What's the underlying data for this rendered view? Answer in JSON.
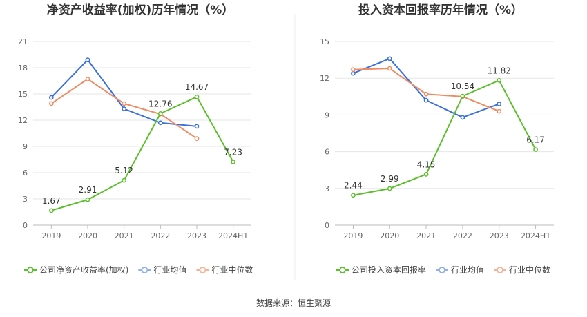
{
  "footer": {
    "source": "数据来源：恒生聚源"
  },
  "colors": {
    "company": "#5bbf2c",
    "avg": "#3a6fdc",
    "median": "#ef8a62",
    "legend_avg": "#8fb0ec",
    "legend_median": "#f5b49a",
    "grid": "#e6e6e6"
  },
  "chart_data": [
    {
      "type": "line",
      "title": "净资产收益率(加权)历年情况（%）",
      "categories": [
        "2019",
        "2020",
        "2021",
        "2022",
        "2023",
        "2024H1"
      ],
      "ylim": [
        0,
        21
      ],
      "yticks": [
        0,
        3,
        6,
        9,
        12,
        15,
        18,
        21
      ],
      "grid": true,
      "legend_position": "bottom",
      "series": [
        {
          "name": "公司净资产收益率(加权)",
          "values": [
            1.67,
            2.91,
            5.12,
            12.76,
            14.67,
            7.23
          ],
          "labels": [
            "1.67",
            "2.91",
            "5.12",
            "12.76",
            "14.67",
            "7.23"
          ]
        },
        {
          "name": "行业均值",
          "values": [
            14.6,
            18.9,
            13.3,
            11.7,
            11.3,
            null
          ]
        },
        {
          "name": "行业中位数",
          "values": [
            13.9,
            16.7,
            13.9,
            12.7,
            9.9,
            null
          ]
        }
      ]
    },
    {
      "type": "line",
      "title": "投入资本回报率历年情况（%）",
      "categories": [
        "2019",
        "2020",
        "2021",
        "2022",
        "2023",
        "2024H1"
      ],
      "ylim": [
        0,
        15
      ],
      "yticks": [
        0,
        3,
        6,
        9,
        12,
        15
      ],
      "grid": true,
      "legend_position": "bottom",
      "series": [
        {
          "name": "公司投入资本回报率",
          "values": [
            2.44,
            2.99,
            4.15,
            10.54,
            11.82,
            6.17
          ],
          "labels": [
            "2.44",
            "2.99",
            "4.15",
            "10.54",
            "11.82",
            "6.17"
          ]
        },
        {
          "name": "行业均值",
          "values": [
            12.4,
            13.6,
            10.2,
            8.8,
            9.9,
            null
          ]
        },
        {
          "name": "行业中位数",
          "values": [
            12.7,
            12.8,
            10.7,
            10.5,
            9.3,
            null
          ]
        }
      ]
    }
  ]
}
